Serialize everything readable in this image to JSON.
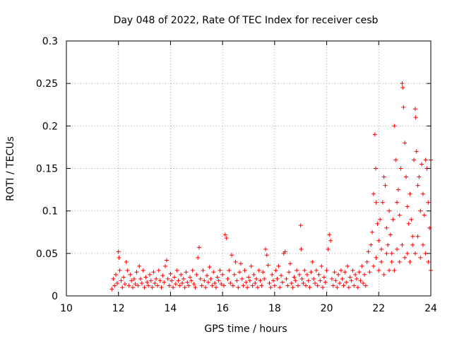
{
  "chart_data": {
    "type": "scatter",
    "title": "Day 048 of 2022, Rate Of TEC Index for receiver cesb",
    "xlabel": "GPS time / hours",
    "ylabel": "ROTI / TECUs",
    "xlim": [
      10,
      24
    ],
    "ylim": [
      0,
      0.3
    ],
    "x_ticks": [
      "10",
      "12",
      "14",
      "16",
      "18",
      "20",
      "22",
      "24"
    ],
    "y_ticks": [
      "0",
      "0.05",
      "0.1",
      "0.15",
      "0.2",
      "0.25",
      "0.3"
    ],
    "grid": true,
    "marker": "+",
    "color": "#ff0000",
    "series": [
      {
        "points": [
          [
            11.75,
            0.008
          ],
          [
            11.8,
            0.02
          ],
          [
            11.85,
            0.012
          ],
          [
            11.9,
            0.025
          ],
          [
            11.95,
            0.015
          ],
          [
            12.0,
            0.052
          ],
          [
            12.02,
            0.045
          ],
          [
            12.05,
            0.03
          ],
          [
            12.1,
            0.018
          ],
          [
            12.15,
            0.01
          ],
          [
            12.2,
            0.022
          ],
          [
            12.25,
            0.014
          ],
          [
            12.3,
            0.04
          ],
          [
            12.35,
            0.03
          ],
          [
            12.4,
            0.012
          ],
          [
            12.45,
            0.025
          ],
          [
            12.5,
            0.018
          ],
          [
            12.55,
            0.01
          ],
          [
            12.6,
            0.02
          ],
          [
            12.65,
            0.014
          ],
          [
            12.7,
            0.028
          ],
          [
            12.75,
            0.012
          ],
          [
            12.8,
            0.035
          ],
          [
            12.85,
            0.02
          ],
          [
            12.9,
            0.015
          ],
          [
            12.95,
            0.03
          ],
          [
            13.0,
            0.01
          ],
          [
            13.05,
            0.022
          ],
          [
            13.1,
            0.016
          ],
          [
            13.15,
            0.012
          ],
          [
            13.2,
            0.025
          ],
          [
            13.25,
            0.018
          ],
          [
            13.3,
            0.01
          ],
          [
            13.35,
            0.028
          ],
          [
            13.4,
            0.015
          ],
          [
            13.45,
            0.02
          ],
          [
            13.5,
            0.012
          ],
          [
            13.55,
            0.03
          ],
          [
            13.6,
            0.018
          ],
          [
            13.65,
            0.01
          ],
          [
            13.7,
            0.024
          ],
          [
            13.75,
            0.016
          ],
          [
            13.8,
            0.035
          ],
          [
            13.85,
            0.042
          ],
          [
            13.9,
            0.02
          ],
          [
            13.95,
            0.012
          ],
          [
            14.0,
            0.026
          ],
          [
            14.05,
            0.018
          ],
          [
            14.1,
            0.01
          ],
          [
            14.15,
            0.022
          ],
          [
            14.2,
            0.014
          ],
          [
            14.25,
            0.03
          ],
          [
            14.3,
            0.018
          ],
          [
            14.35,
            0.012
          ],
          [
            14.4,
            0.025
          ],
          [
            14.45,
            0.015
          ],
          [
            14.5,
            0.02
          ],
          [
            14.55,
            0.01
          ],
          [
            14.6,
            0.028
          ],
          [
            14.65,
            0.016
          ],
          [
            14.7,
            0.012
          ],
          [
            14.75,
            0.022
          ],
          [
            14.8,
            0.018
          ],
          [
            14.85,
            0.03
          ],
          [
            14.9,
            0.014
          ],
          [
            14.95,
            0.01
          ],
          [
            15.0,
            0.025
          ],
          [
            15.05,
            0.045
          ],
          [
            15.1,
            0.057
          ],
          [
            15.15,
            0.02
          ],
          [
            15.2,
            0.012
          ],
          [
            15.25,
            0.03
          ],
          [
            15.3,
            0.018
          ],
          [
            15.35,
            0.01
          ],
          [
            15.4,
            0.024
          ],
          [
            15.45,
            0.016
          ],
          [
            15.5,
            0.034
          ],
          [
            15.55,
            0.02
          ],
          [
            15.6,
            0.012
          ],
          [
            15.65,
            0.028
          ],
          [
            15.7,
            0.015
          ],
          [
            15.75,
            0.01
          ],
          [
            15.8,
            0.022
          ],
          [
            15.85,
            0.018
          ],
          [
            15.9,
            0.03
          ],
          [
            15.95,
            0.014
          ],
          [
            16.0,
            0.025
          ],
          [
            16.05,
            0.012
          ],
          [
            16.1,
            0.072
          ],
          [
            16.15,
            0.068
          ],
          [
            16.2,
            0.02
          ],
          [
            16.25,
            0.03
          ],
          [
            16.3,
            0.015
          ],
          [
            16.35,
            0.048
          ],
          [
            16.4,
            0.012
          ],
          [
            16.45,
            0.025
          ],
          [
            16.5,
            0.04
          ],
          [
            16.55,
            0.018
          ],
          [
            16.6,
            0.01
          ],
          [
            16.65,
            0.028
          ],
          [
            16.7,
            0.038
          ],
          [
            16.75,
            0.02
          ],
          [
            16.8,
            0.012
          ],
          [
            16.85,
            0.03
          ],
          [
            16.9,
            0.016
          ],
          [
            16.95,
            0.01
          ],
          [
            17.0,
            0.022
          ],
          [
            17.05,
            0.018
          ],
          [
            17.1,
            0.035
          ],
          [
            17.15,
            0.012
          ],
          [
            17.2,
            0.025
          ],
          [
            17.25,
            0.015
          ],
          [
            17.3,
            0.02
          ],
          [
            17.35,
            0.01
          ],
          [
            17.4,
            0.03
          ],
          [
            17.45,
            0.018
          ],
          [
            17.5,
            0.012
          ],
          [
            17.55,
            0.028
          ],
          [
            17.6,
            0.02
          ],
          [
            17.65,
            0.055
          ],
          [
            17.7,
            0.048
          ],
          [
            17.75,
            0.036
          ],
          [
            17.8,
            0.015
          ],
          [
            17.85,
            0.01
          ],
          [
            17.9,
            0.025
          ],
          [
            17.95,
            0.018
          ],
          [
            18.0,
            0.012
          ],
          [
            18.05,
            0.03
          ],
          [
            18.1,
            0.02
          ],
          [
            18.15,
            0.035
          ],
          [
            18.2,
            0.01
          ],
          [
            18.25,
            0.024
          ],
          [
            18.3,
            0.016
          ],
          [
            18.35,
            0.05
          ],
          [
            18.4,
            0.052
          ],
          [
            18.45,
            0.02
          ],
          [
            18.5,
            0.012
          ],
          [
            18.55,
            0.028
          ],
          [
            18.6,
            0.038
          ],
          [
            18.65,
            0.015
          ],
          [
            18.7,
            0.01
          ],
          [
            18.75,
            0.022
          ],
          [
            18.8,
            0.018
          ],
          [
            18.85,
            0.03
          ],
          [
            18.9,
            0.012
          ],
          [
            18.95,
            0.025
          ],
          [
            19.0,
            0.083
          ],
          [
            19.02,
            0.055
          ],
          [
            19.05,
            0.02
          ],
          [
            19.1,
            0.015
          ],
          [
            19.15,
            0.03
          ],
          [
            19.2,
            0.012
          ],
          [
            19.25,
            0.025
          ],
          [
            19.3,
            0.018
          ],
          [
            19.35,
            0.01
          ],
          [
            19.4,
            0.028
          ],
          [
            19.45,
            0.04
          ],
          [
            19.5,
            0.02
          ],
          [
            19.55,
            0.015
          ],
          [
            19.6,
            0.03
          ],
          [
            19.65,
            0.012
          ],
          [
            19.7,
            0.025
          ],
          [
            19.75,
            0.018
          ],
          [
            19.8,
            0.035
          ],
          [
            19.85,
            0.01
          ],
          [
            19.9,
            0.022
          ],
          [
            19.95,
            0.016
          ],
          [
            20.0,
            0.03
          ],
          [
            20.05,
            0.055
          ],
          [
            20.1,
            0.072
          ],
          [
            20.15,
            0.065
          ],
          [
            20.2,
            0.02
          ],
          [
            20.25,
            0.012
          ],
          [
            20.3,
            0.028
          ],
          [
            20.35,
            0.018
          ],
          [
            20.4,
            0.01
          ],
          [
            20.45,
            0.025
          ],
          [
            20.5,
            0.015
          ],
          [
            20.55,
            0.03
          ],
          [
            20.6,
            0.02
          ],
          [
            20.65,
            0.012
          ],
          [
            20.7,
            0.028
          ],
          [
            20.75,
            0.016
          ],
          [
            20.8,
            0.035
          ],
          [
            20.85,
            0.01
          ],
          [
            20.9,
            0.022
          ],
          [
            20.95,
            0.018
          ],
          [
            21.0,
            0.03
          ],
          [
            21.05,
            0.012
          ],
          [
            21.1,
            0.025
          ],
          [
            21.15,
            0.02
          ],
          [
            21.2,
            0.01
          ],
          [
            21.25,
            0.028
          ],
          [
            21.3,
            0.018
          ],
          [
            21.35,
            0.035
          ],
          [
            21.4,
            0.015
          ],
          [
            21.45,
            0.025
          ],
          [
            21.5,
            0.012
          ],
          [
            21.55,
            0.04
          ],
          [
            21.6,
            0.052
          ],
          [
            21.65,
            0.028
          ],
          [
            21.7,
            0.06
          ],
          [
            21.75,
            0.075
          ],
          [
            21.8,
            0.12
          ],
          [
            21.85,
            0.19
          ],
          [
            21.88,
            0.15
          ],
          [
            21.9,
            0.11
          ],
          [
            21.95,
            0.085
          ],
          [
            22.0,
            0.065
          ],
          [
            22.05,
            0.09
          ],
          [
            22.1,
            0.055
          ],
          [
            22.15,
            0.11
          ],
          [
            22.2,
            0.14
          ],
          [
            22.25,
            0.13
          ],
          [
            22.3,
            0.08
          ],
          [
            22.35,
            0.06
          ],
          [
            22.4,
            0.1
          ],
          [
            22.45,
            0.072
          ],
          [
            22.5,
            0.05
          ],
          [
            22.55,
            0.09
          ],
          [
            22.6,
            0.2
          ],
          [
            22.65,
            0.16
          ],
          [
            22.7,
            0.11
          ],
          [
            22.75,
            0.125
          ],
          [
            22.8,
            0.095
          ],
          [
            22.85,
            0.15
          ],
          [
            22.9,
            0.25
          ],
          [
            22.92,
            0.245
          ],
          [
            22.95,
            0.222
          ],
          [
            23.0,
            0.18
          ],
          [
            23.05,
            0.14
          ],
          [
            23.1,
            0.105
          ],
          [
            23.15,
            0.085
          ],
          [
            23.2,
            0.12
          ],
          [
            23.25,
            0.09
          ],
          [
            23.3,
            0.07
          ],
          [
            23.35,
            0.16
          ],
          [
            23.4,
            0.22
          ],
          [
            23.42,
            0.21
          ],
          [
            23.45,
            0.17
          ],
          [
            23.5,
            0.13
          ],
          [
            23.55,
            0.14
          ],
          [
            23.6,
            0.1
          ],
          [
            23.65,
            0.155
          ],
          [
            23.7,
            0.12
          ],
          [
            23.75,
            0.095
          ],
          [
            23.8,
            0.16
          ],
          [
            23.85,
            0.15
          ],
          [
            23.9,
            0.11
          ],
          [
            23.95,
            0.08
          ],
          [
            24.0,
            0.16
          ],
          [
            21.8,
            0.035
          ],
          [
            21.9,
            0.045
          ],
          [
            22.0,
            0.03
          ],
          [
            22.1,
            0.04
          ],
          [
            22.2,
            0.025
          ],
          [
            22.3,
            0.05
          ],
          [
            22.4,
            0.03
          ],
          [
            22.5,
            0.04
          ],
          [
            22.6,
            0.03
          ],
          [
            22.7,
            0.055
          ],
          [
            22.8,
            0.04
          ],
          [
            22.9,
            0.06
          ],
          [
            23.0,
            0.045
          ],
          [
            23.1,
            0.05
          ],
          [
            23.2,
            0.04
          ],
          [
            23.3,
            0.06
          ],
          [
            23.4,
            0.05
          ],
          [
            23.5,
            0.07
          ],
          [
            23.6,
            0.045
          ],
          [
            23.7,
            0.06
          ],
          [
            23.8,
            0.05
          ],
          [
            23.9,
            0.04
          ],
          [
            24.0,
            0.03
          ]
        ]
      }
    ]
  }
}
